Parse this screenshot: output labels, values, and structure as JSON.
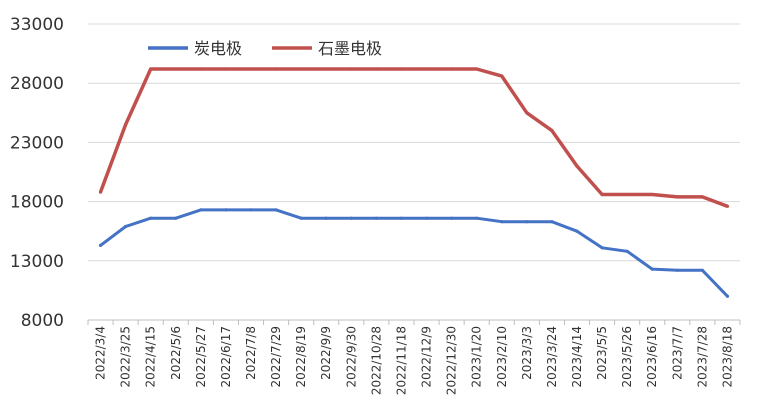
{
  "chart_data": {
    "type": "line",
    "title": "",
    "xlabel": "",
    "ylabel": "",
    "ylim": [
      8000,
      33000
    ],
    "yticks": [
      8000,
      13000,
      18000,
      23000,
      28000,
      33000
    ],
    "grid": true,
    "legend_position": "top-left",
    "x": [
      "2022/3/4",
      "2022/3/25",
      "2022/4/15",
      "2022/5/6",
      "2022/5/27",
      "2022/6/17",
      "2022/7/8",
      "2022/7/29",
      "2022/8/19",
      "2022/9/9",
      "2022/9/30",
      "2022/10/28",
      "2022/11/18",
      "2022/12/9",
      "2022/12/30",
      "2023/1/20",
      "2023/2/10",
      "2023/3/3",
      "2023/3/24",
      "2023/4/14",
      "2023/5/5",
      "2023/5/26",
      "2023/6/16",
      "2023/7/7",
      "2023/7/28",
      "2023/8/18"
    ],
    "series": [
      {
        "name": "炭电极",
        "color": "#4472c4",
        "values": [
          14300,
          15900,
          16600,
          16600,
          17300,
          17300,
          17300,
          17300,
          16600,
          16600,
          16600,
          16600,
          16600,
          16600,
          16600,
          16600,
          16300,
          16300,
          16300,
          15500,
          14100,
          13800,
          12300,
          12200,
          12200,
          10000
        ]
      },
      {
        "name": "石墨电极",
        "color": "#c0504d",
        "values": [
          18800,
          24500,
          29200,
          29200,
          29200,
          29200,
          29200,
          29200,
          29200,
          29200,
          29200,
          29200,
          29200,
          29200,
          29200,
          29200,
          28600,
          25500,
          24000,
          21000,
          18600,
          18600,
          18600,
          18400,
          18400,
          17600
        ]
      }
    ]
  }
}
